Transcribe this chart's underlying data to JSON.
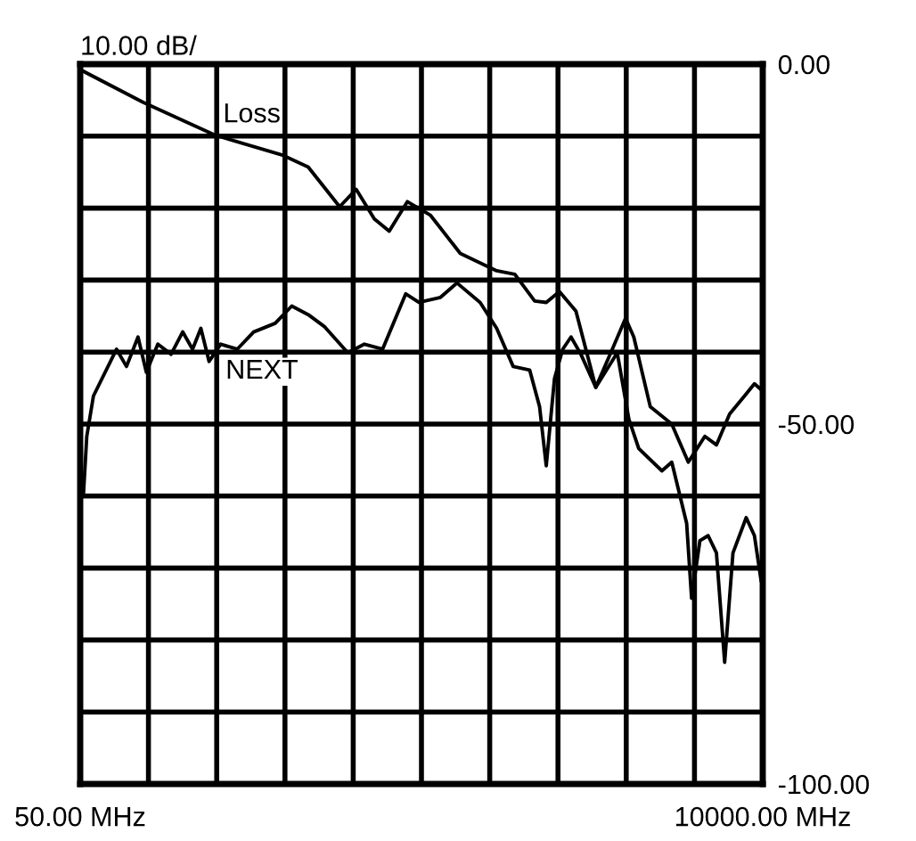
{
  "chart_data": {
    "type": "line",
    "annotations": [
      "10.00 dB/"
    ],
    "xlim": [
      50,
      10000
    ],
    "xticks": [
      {
        "value": 50,
        "label": "50.00 MHz"
      },
      {
        "value": 1045,
        "label": null
      },
      {
        "value": 2040,
        "label": null
      },
      {
        "value": 3035,
        "label": null
      },
      {
        "value": 4030,
        "label": null
      },
      {
        "value": 5025,
        "label": null
      },
      {
        "value": 6020,
        "label": null
      },
      {
        "value": 7015,
        "label": null
      },
      {
        "value": 8010,
        "label": null
      },
      {
        "value": 9005,
        "label": null
      },
      {
        "value": 10000,
        "label": "10000.00 MHz"
      }
    ],
    "ylim": [
      -100,
      0
    ],
    "yticks": [
      {
        "value": 0,
        "label": "0.00"
      },
      {
        "value": -10,
        "label": null
      },
      {
        "value": -20,
        "label": null
      },
      {
        "value": -30,
        "label": null
      },
      {
        "value": -40,
        "label": null
      },
      {
        "value": -50,
        "label": "-50.00"
      },
      {
        "value": -60,
        "label": null
      },
      {
        "value": -70,
        "label": null
      },
      {
        "value": -80,
        "label": null
      },
      {
        "value": -90,
        "label": null
      },
      {
        "value": -100,
        "label": "-100.00"
      }
    ],
    "grid": true,
    "legend": false,
    "marker": "none",
    "line_style": "solid",
    "series": [
      {
        "name": "Loss",
        "color": "#000000",
        "x": [
          98,
          965,
          2025,
          2989,
          3374,
          3832,
          4073,
          4338,
          4555,
          4820,
          5157,
          5591,
          6121,
          6386,
          6675,
          6844,
          7036,
          7277,
          7566,
          7807,
          8000,
          8120,
          8361,
          8674,
          8915,
          9156,
          9325,
          9517,
          9734,
          9879,
          9975
        ],
        "values": [
          -1.0,
          -5.3,
          -9.9,
          -12.6,
          -14.3,
          -19.8,
          -17.4,
          -21.5,
          -23.2,
          -19.1,
          -21.0,
          -26.3,
          -28.7,
          -29.2,
          -32.9,
          -33.1,
          -31.6,
          -34.3,
          -44.9,
          -39.6,
          -35.3,
          -37.9,
          -47.6,
          -50.0,
          -55.3,
          -51.7,
          -52.9,
          -48.6,
          -46.1,
          -44.4,
          -45.2
        ]
      },
      {
        "name": "NEXT",
        "color": "#000000",
        "x": [
          98,
          146,
          243,
          580,
          725,
          893,
          1014,
          1182,
          1375,
          1544,
          1688,
          1809,
          1929,
          2098,
          2339,
          2579,
          2893,
          3134,
          3374,
          3615,
          3952,
          4193,
          4458,
          4796,
          4988,
          5302,
          5543,
          5880,
          6121,
          6362,
          6603,
          6747,
          6844,
          6964,
          7084,
          7205,
          7349,
          7566,
          7879,
          8048,
          8192,
          8530,
          8674,
          8891,
          8963,
          9084,
          9204,
          9325,
          9445,
          9566,
          9759,
          9879,
          9975
        ],
        "values": [
          -59.7,
          -51.7,
          -46.1,
          -39.6,
          -42.0,
          -37.9,
          -42.8,
          -38.9,
          -40.3,
          -37.2,
          -39.6,
          -36.7,
          -41.3,
          -38.9,
          -39.6,
          -37.2,
          -36.0,
          -33.6,
          -34.8,
          -36.5,
          -40.1,
          -38.9,
          -39.6,
          -31.9,
          -33.1,
          -32.4,
          -30.4,
          -33.1,
          -36.7,
          -42.0,
          -42.5,
          -47.6,
          -55.8,
          -43.7,
          -39.6,
          -37.9,
          -40.3,
          -44.9,
          -40.1,
          -49.3,
          -53.4,
          -56.5,
          -55.3,
          -63.8,
          -74.2,
          -66.2,
          -65.5,
          -67.9,
          -83.1,
          -67.9,
          -63.0,
          -65.5,
          -71.7
        ]
      }
    ]
  }
}
